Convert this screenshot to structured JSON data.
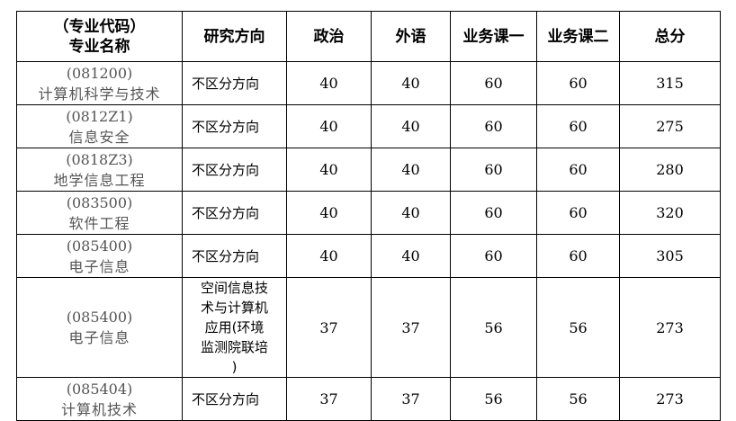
{
  "headers": {
    "major_line1": "（专业代码）",
    "major_line2": "专业名称",
    "direction": "研究方向",
    "politics": "政治",
    "language": "外语",
    "course1": "业务课一",
    "course2": "业务课二",
    "total": "总分"
  },
  "rows": [
    {
      "code": "(081200)",
      "name": "计算机科学与技术",
      "direction": "不区分方向",
      "politics": "40",
      "language": "40",
      "course1": "60",
      "course2": "60",
      "total": "315"
    },
    {
      "code": "(0812Z1)",
      "name": "信息安全",
      "direction": "不区分方向",
      "politics": "40",
      "language": "40",
      "course1": "60",
      "course2": "60",
      "total": "275"
    },
    {
      "code": "(0818Z3)",
      "name": "地学信息工程",
      "direction": "不区分方向",
      "politics": "40",
      "language": "40",
      "course1": "60",
      "course2": "60",
      "total": "280"
    },
    {
      "code": "(083500)",
      "name": "软件工程",
      "direction": "不区分方向",
      "politics": "40",
      "language": "40",
      "course1": "60",
      "course2": "60",
      "total": "320"
    },
    {
      "code": "(085400)",
      "name": "电子信息",
      "direction": "不区分方向",
      "politics": "40",
      "language": "40",
      "course1": "60",
      "course2": "60",
      "total": "305"
    },
    {
      "code": "(085400)",
      "name": "电子信息",
      "direction": "空间信息技术与计算机应用(环境监测院联培)",
      "politics": "37",
      "language": "37",
      "course1": "56",
      "course2": "56",
      "total": "273"
    },
    {
      "code": "(085404)",
      "name": "计算机技术",
      "direction": "不区分方向",
      "politics": "37",
      "language": "37",
      "course1": "56",
      "course2": "56",
      "total": "273"
    }
  ]
}
